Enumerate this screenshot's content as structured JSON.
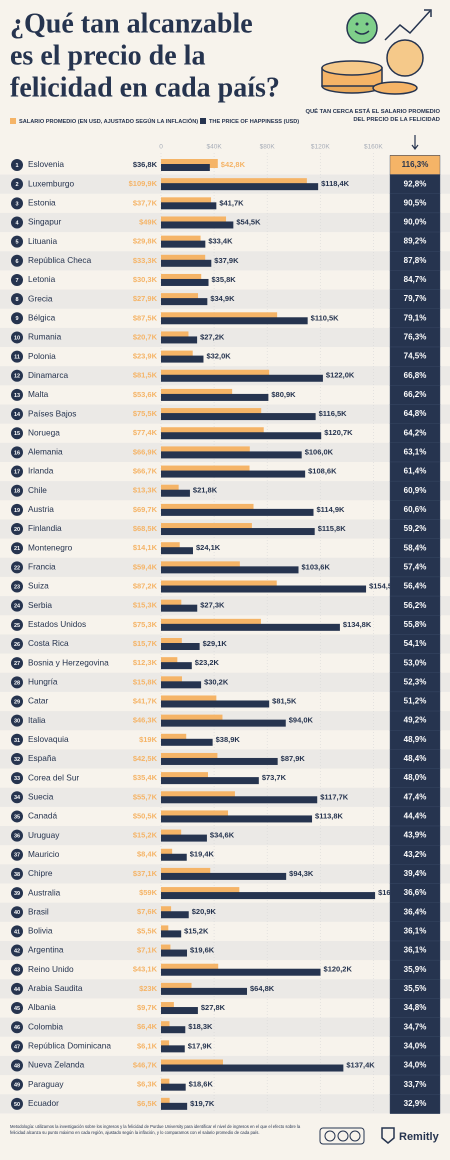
{
  "chart_data": {
    "type": "bar",
    "title": [
      "¿Qué tan alcanzable",
      "es el precio de la",
      "felicidad en cada país?"
    ],
    "ranks": [
      1,
      2,
      3,
      4,
      5,
      6,
      7,
      8,
      9,
      10,
      11,
      12,
      13,
      14,
      15,
      16,
      17,
      18,
      19,
      20,
      21,
      22,
      23,
      24,
      25,
      26,
      27,
      28,
      29,
      30,
      31,
      32,
      33,
      34,
      35,
      36,
      37,
      38,
      39,
      40,
      41,
      42,
      43,
      44,
      45,
      46,
      47,
      48,
      49,
      50
    ],
    "categories": [
      "Eslovenia",
      "Luxemburgo",
      "Estonia",
      "Singapur",
      "Lituania",
      "República Checa",
      "Letonia",
      "Grecia",
      "Bélgica",
      "Rumania",
      "Polonia",
      "Dinamarca",
      "Malta",
      "Países Bajos",
      "Noruega",
      "Alemania",
      "Irlanda",
      "Chile",
      "Austria",
      "Finlandia",
      "Montenegro",
      "Francia",
      "Suiza",
      "Serbia",
      "Estados Unidos",
      "Costa Rica",
      "Bosnia y Herzegovina",
      "Hungría",
      "Catar",
      "Italia",
      "Eslovaquia",
      "España",
      "Corea del Sur",
      "Suecia",
      "Canadá",
      "Uruguay",
      "Mauricio",
      "Chipre",
      "Australia",
      "Brasil",
      "Bolivia",
      "Argentina",
      "Reino Unido",
      "Arabia Saudita",
      "Albania",
      "Colombia",
      "República Dominicana",
      "Nueva Zelanda",
      "Paraguay",
      "Ecuador"
    ],
    "series": [
      {
        "name": "SALARIO PROMEDIO (EN USD, AJUSTADO SEGÚN LA INFLACIÓN)",
        "color": "#f5b467",
        "values": [
          42.8,
          109.9,
          37.7,
          49,
          29.8,
          33.3,
          30.3,
          27.9,
          87.5,
          20.7,
          23.9,
          81.5,
          53.6,
          75.5,
          77.4,
          66.9,
          66.7,
          13.3,
          69.7,
          68.5,
          14.1,
          59.4,
          87.2,
          15.3,
          75.3,
          15.7,
          12.3,
          15.8,
          41.7,
          46.3,
          19,
          42.5,
          35.4,
          55.7,
          50.5,
          15.2,
          8.4,
          37.1,
          59,
          7.6,
          5.5,
          7.1,
          43.1,
          23,
          9.7,
          6.4,
          6.1,
          46.7,
          6.3,
          6.5
        ],
        "value_labels": [
          "$42,8K",
          "$109,9K",
          "$37,7K",
          "$49K",
          "$29,8K",
          "$33,3K",
          "$30,3K",
          "$27,9K",
          "$87,5K",
          "$20,7K",
          "$23,9K",
          "$81,5K",
          "$53,6K",
          "$75,5K",
          "$77,4K",
          "$66,9K",
          "$66,7K",
          "$13,3K",
          "$69,7K",
          "$68,5K",
          "$14,1K",
          "$59,4K",
          "$87,2K",
          "$15,3K",
          "$75,3K",
          "$15,7K",
          "$12,3K",
          "$15,8K",
          "$41,7K",
          "$46,3K",
          "$19K",
          "$42,5K",
          "$35,4K",
          "$55,7K",
          "$50,5K",
          "$15,2K",
          "$8,4K",
          "$37,1K",
          "$59K",
          "$7,6K",
          "$5,5K",
          "$7,1K",
          "$43,1K",
          "$23K",
          "$9,7K",
          "$6,4K",
          "$6,1K",
          "$46,7K",
          "$6,3K",
          "$6,5K"
        ]
      },
      {
        "name": "THE PRICE OF HAPPINESS (USD)",
        "color": "#26344f",
        "values": [
          36.8,
          118.4,
          41.7,
          54.5,
          33.4,
          37.9,
          35.8,
          34.9,
          110.5,
          27.2,
          32.0,
          122.0,
          80.9,
          116.5,
          120.7,
          106.0,
          108.6,
          21.8,
          114.9,
          115.8,
          24.1,
          103.6,
          154.5,
          27.3,
          134.8,
          29.1,
          23.2,
          30.2,
          81.5,
          94.0,
          38.9,
          87.9,
          73.7,
          117.7,
          113.8,
          34.6,
          19.4,
          94.3,
          161.3,
          20.9,
          15.2,
          19.6,
          120.2,
          64.8,
          27.8,
          18.3,
          17.9,
          137.4,
          18.6,
          19.7
        ],
        "value_labels": [
          "$36,8K",
          "$118,4K",
          "$41,7K",
          "$54,5K",
          "$33,4K",
          "$37,9K",
          "$35,8K",
          "$34,9K",
          "$110,5K",
          "$27,2K",
          "$32,0K",
          "$122,0K",
          "$80,9K",
          "$116,5K",
          "$120,7K",
          "$106,0K",
          "$108,6K",
          "$21,8K",
          "$114,9K",
          "$115,8K",
          "$24,1K",
          "$103,6K",
          "$154,5K",
          "$27,3K",
          "$134,8K",
          "$29,1K",
          "$23,2K",
          "$30,2K",
          "$81,5K",
          "$94,0K",
          "$38,9K",
          "$87,9K",
          "$73,7K",
          "$117,7K",
          "$113,8K",
          "$34,6K",
          "$19,4K",
          "$94,3K",
          "$161,3K",
          "$20,9K",
          "$15,2K",
          "$19,6K",
          "$120,2K",
          "$64,8K",
          "$27,8K",
          "$18,3K",
          "$17,9K",
          "$137,4K",
          "$18,6K",
          "$19,7K"
        ]
      }
    ],
    "ratio": {
      "title": "QUÉ TAN CERCA ESTÁ EL SALARIO PROMEDIO DEL PRECIO DE LA FELICIDAD",
      "values": [
        116.3,
        92.8,
        90.5,
        90.0,
        89.2,
        87.8,
        84.7,
        79.7,
        79.1,
        76.3,
        74.5,
        66.8,
        66.2,
        64.8,
        64.2,
        63.1,
        61.4,
        60.9,
        60.6,
        59.2,
        58.4,
        57.4,
        56.4,
        56.2,
        55.8,
        54.1,
        53.0,
        52.3,
        51.2,
        49.2,
        48.9,
        48.4,
        48.0,
        47.4,
        44.4,
        43.9,
        43.2,
        39.4,
        36.6,
        36.4,
        36.1,
        36.1,
        35.9,
        35.5,
        34.8,
        34.7,
        34.0,
        34.0,
        33.7,
        32.9
      ],
      "value_labels": [
        "116,3%",
        "92,8%",
        "90,5%",
        "90,0%",
        "89,2%",
        "87,8%",
        "84,7%",
        "79,7%",
        "79,1%",
        "76,3%",
        "74,5%",
        "66,8%",
        "66,2%",
        "64,8%",
        "64,2%",
        "63,1%",
        "61,4%",
        "60,9%",
        "60,6%",
        "59,2%",
        "58,4%",
        "57,4%",
        "56,4%",
        "56,2%",
        "55,8%",
        "54,1%",
        "53,0%",
        "52,3%",
        "51,2%",
        "49,2%",
        "48,9%",
        "48,4%",
        "48,0%",
        "47,4%",
        "44,4%",
        "43,9%",
        "43,2%",
        "39,4%",
        "36,6%",
        "36,4%",
        "36,1%",
        "36,1%",
        "35,9%",
        "35,5%",
        "34,8%",
        "34,7%",
        "34,0%",
        "34,0%",
        "33,7%",
        "32,9%"
      ],
      "highlight_color": "#f5b467",
      "color": "#26344f"
    },
    "xlim": [
      0,
      165
    ],
    "xticks": [
      0,
      {
        "value": 40,
        "label": "$40K"
      },
      {
        "value": 80,
        "label": "$80K"
      },
      {
        "value": 120,
        "label": "$120K"
      },
      {
        "value": 160,
        "label": "$160K"
      }
    ],
    "grid": true,
    "methodology": "Metodología: utilizamos la investigación sobre los ingresos y la felicidad de Purdue University para identificar el nivel de ingresos en el que el efecto sobre la felicidad alcanza su punto máximo en cada región, ajustado según la inflación, y lo comparamos con el salario promedio de cada país.",
    "brand": "Remitly"
  }
}
